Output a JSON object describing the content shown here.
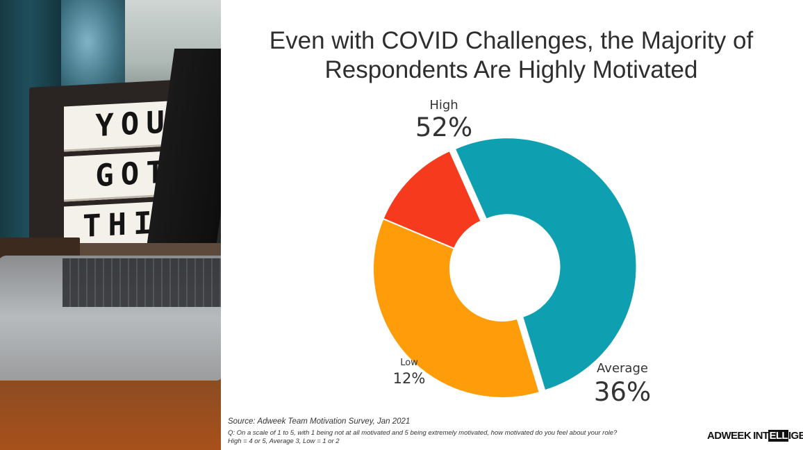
{
  "title": "Even with COVID Challenges, the Majority of Respondents Are Highly Motivated",
  "chart_data": {
    "type": "pie",
    "variant": "donut",
    "title": "Even with COVID Challenges, the Majority of Respondents Are Highly Motivated",
    "categories": [
      "High",
      "Average",
      "Low"
    ],
    "values": [
      52,
      36,
      12
    ],
    "value_labels": [
      "52%",
      "36%",
      "12%"
    ],
    "colors": [
      "#0ea0b1",
      "#ff9c0a",
      "#f63a1e"
    ],
    "legend": "none"
  },
  "photo": {
    "sign_words": [
      "YOU",
      "GOT",
      "THIS"
    ]
  },
  "footer": {
    "source": "Source: Adweek Team Motivation Survey, Jan 2021",
    "question_line1": "Q: On a scale of 1 to 5, with 1 being not at all motivated and 5 being extremely motivated, how motivated do you feel about your role?",
    "question_line2": "High = 4 or 5, Average 3, Low = 1 or 2"
  },
  "logo": {
    "text": "ADWEEK INTELLIGENCE"
  }
}
